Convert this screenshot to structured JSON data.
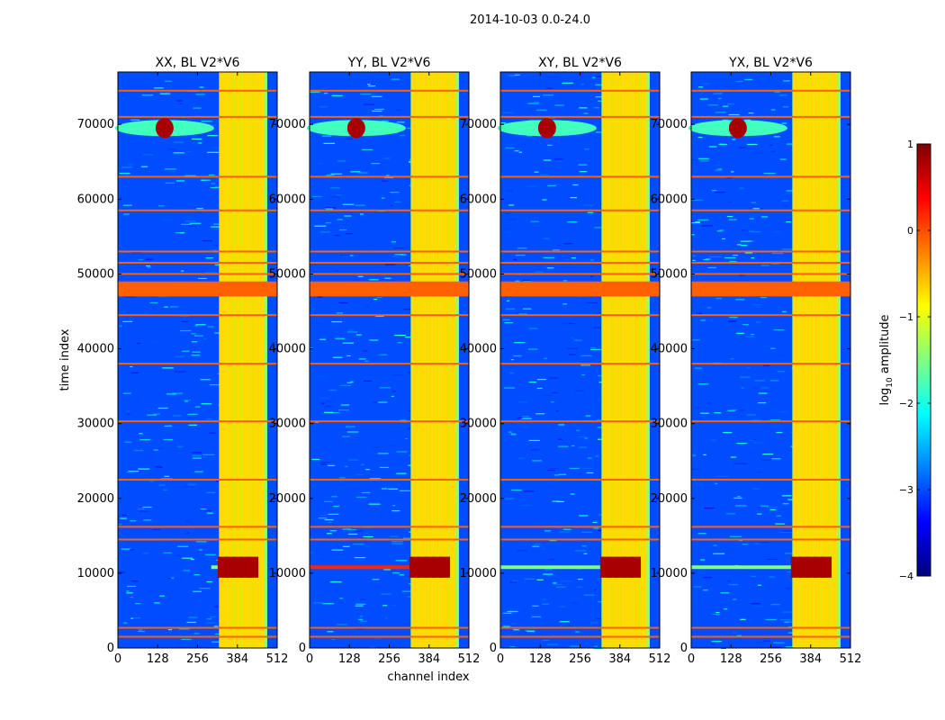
{
  "figure": {
    "suptitle": "2014-10-03 0.0-24.0",
    "xlabel": "channel index",
    "ylabel": "time index"
  },
  "colorbar": {
    "label_prefix": "log",
    "label_sub": "10",
    "label_suffix": " amplitude",
    "ticks": [
      1,
      0,
      -1,
      -2,
      -3,
      -4
    ],
    "tick_labels": [
      "1",
      "0",
      "−1",
      "−2",
      "−3",
      "−4"
    ],
    "range": [
      -4,
      1
    ],
    "colormap": "jet",
    "colors": [
      "#00007f",
      "#0000ff",
      "#0080ff",
      "#00ffff",
      "#80ff80",
      "#ffff00",
      "#ff8000",
      "#ff0000",
      "#7f0000"
    ]
  },
  "chart_data": {
    "type": "heatmap",
    "x_ticks": [
      0,
      128,
      256,
      384,
      512
    ],
    "x_tick_labels": [
      "0",
      "128",
      "256",
      "384",
      "512"
    ],
    "y_ticks": [
      0,
      10000,
      20000,
      30000,
      40000,
      50000,
      60000,
      70000
    ],
    "y_tick_labels": [
      "0",
      "10000",
      "20000",
      "30000",
      "40000",
      "50000",
      "60000",
      "70000"
    ],
    "xlim": [
      0,
      512
    ],
    "ylim": [
      0,
      77000
    ],
    "panels": [
      {
        "title": "XX, BL V2*V6",
        "pol": "XX"
      },
      {
        "title": "YY, BL V2*V6",
        "pol": "YY"
      },
      {
        "title": "XY, BL V2*V6",
        "pol": "XY"
      },
      {
        "title": "YX, BL V2*V6",
        "pol": "YX"
      }
    ],
    "approx_features": {
      "background_log_amplitude": -3,
      "rfi_channel_band": [
        325,
        480
      ],
      "rfi_channel_columns": [
        338,
        362,
        386,
        410,
        434,
        458
      ],
      "flagged_time_band": [
        47000,
        49000
      ],
      "flagged_time_lines": [
        1500,
        2700,
        14500,
        16200,
        22500,
        30300,
        38000,
        44500,
        50000,
        51500,
        53000,
        58500,
        63000,
        71000,
        74500
      ],
      "strong_event_time": 10800,
      "source_event": {
        "channel": 150,
        "time": 69500
      }
    }
  }
}
